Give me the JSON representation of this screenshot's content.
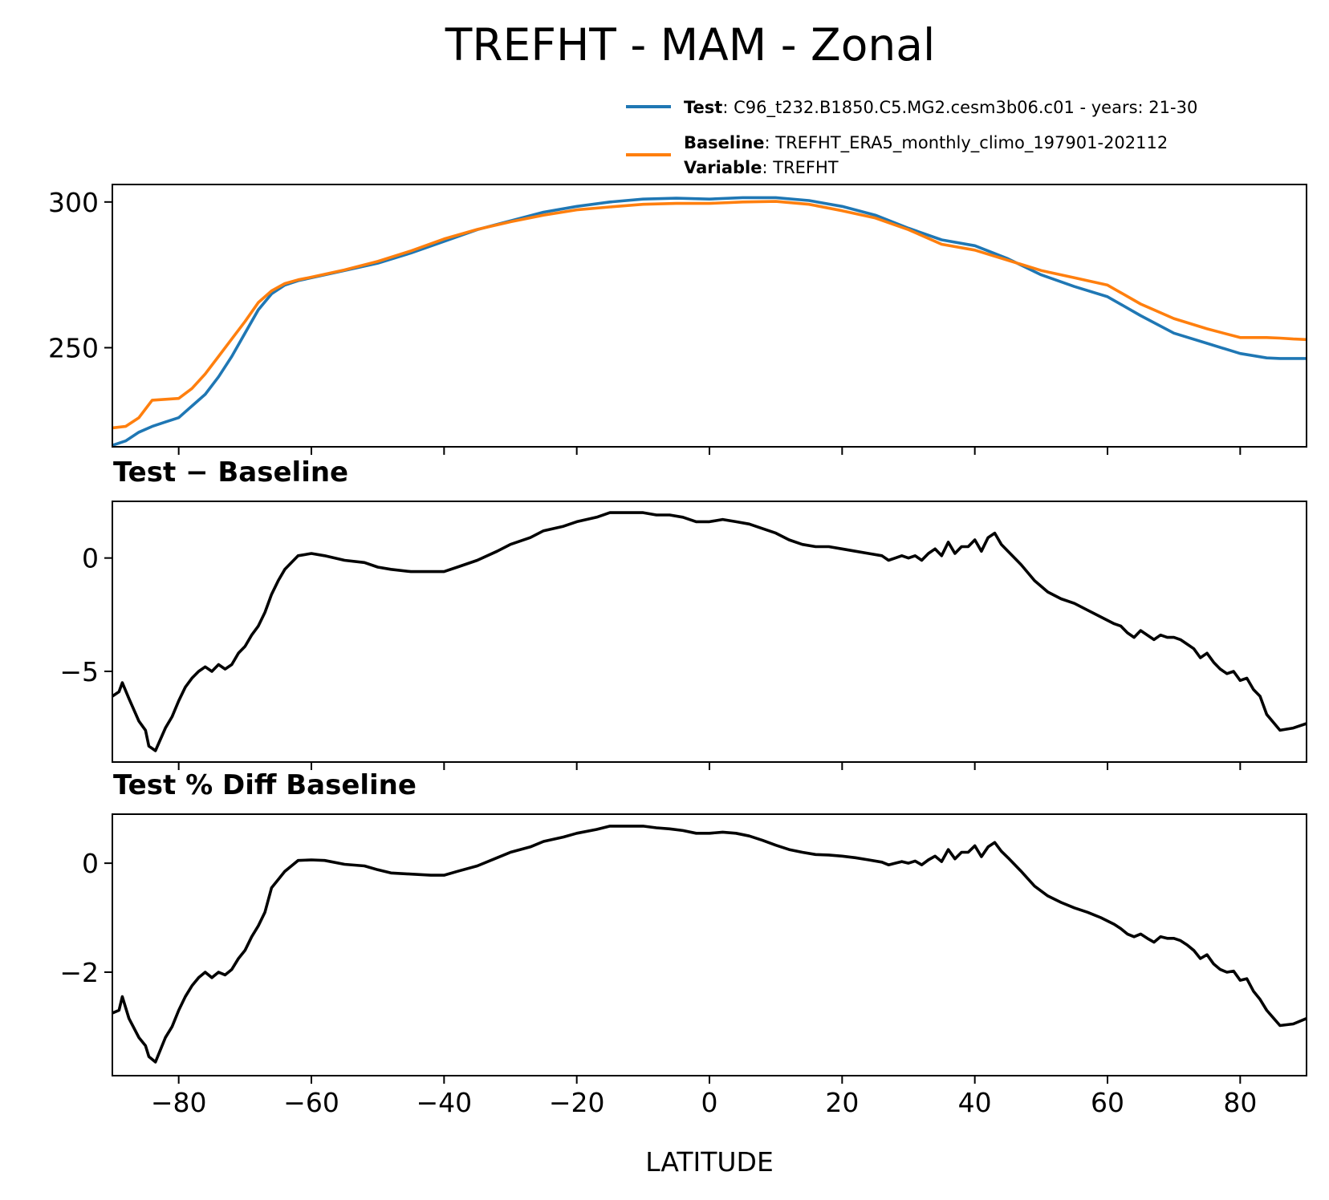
{
  "figure": {
    "title": "TREFHT - MAM - Zonal",
    "xlabel": "LATITUDE"
  },
  "legend": {
    "test_key": "Test",
    "test_text": ": C96_t232.B1850.C5.MG2.cesm3b06.c01 - years: 21-30",
    "baseline_key": "Baseline",
    "baseline_text": ": TREFHT_ERA5_monthly_climo_197901-202112",
    "variable_key": "Variable",
    "variable_text": ": TREFHT"
  },
  "colors": {
    "test": "#1f77b4",
    "baseline": "#ff7f0e",
    "diff": "#000000"
  },
  "chart_data": [
    {
      "type": "line",
      "title": "",
      "xlabel": "",
      "ylabel": "",
      "xlim": [
        -90,
        90
      ],
      "ylim": [
        216,
        306
      ],
      "xticks": [
        -80,
        -60,
        -40,
        -20,
        0,
        20,
        40,
        60,
        80
      ],
      "yticks": [
        250,
        300
      ],
      "ytick_labels": [
        "250",
        "300"
      ],
      "series": [
        {
          "name": "Test",
          "x": [
            -90,
            -88,
            -86,
            -84,
            -82,
            -80,
            -78,
            -76,
            -74,
            -72,
            -70,
            -68,
            -66,
            -64,
            -62,
            -60,
            -55,
            -50,
            -45,
            -40,
            -35,
            -30,
            -25,
            -20,
            -15,
            -10,
            -5,
            0,
            5,
            10,
            15,
            20,
            25,
            30,
            35,
            40,
            45,
            50,
            55,
            60,
            65,
            70,
            75,
            80,
            84,
            86,
            88,
            90
          ],
          "values": [
            216.5,
            218,
            221,
            223,
            224.5,
            226,
            230,
            234,
            240,
            247,
            255,
            263,
            268.5,
            271.5,
            273,
            274,
            276.5,
            279,
            282.5,
            286.5,
            290.5,
            293.5,
            296.5,
            298.5,
            300,
            301,
            301.3,
            301,
            301.5,
            301.5,
            300.5,
            298.5,
            295.5,
            291,
            287,
            285,
            280.5,
            275,
            271,
            267.5,
            261,
            255,
            251.5,
            248,
            246.5,
            246.3,
            246.3,
            246.3
          ]
        },
        {
          "name": "Baseline",
          "x": [
            -90,
            -88,
            -86,
            -84,
            -82,
            -80,
            -78,
            -76,
            -74,
            -72,
            -70,
            -68,
            -66,
            -64,
            -62,
            -60,
            -55,
            -50,
            -45,
            -40,
            -35,
            -30,
            -25,
            -20,
            -15,
            -10,
            -5,
            0,
            5,
            10,
            15,
            20,
            25,
            30,
            35,
            40,
            45,
            50,
            55,
            60,
            65,
            70,
            75,
            80,
            84,
            86,
            88,
            90
          ],
          "values": [
            222.5,
            223,
            226,
            232,
            232.3,
            232.6,
            236,
            241,
            247,
            253,
            259,
            265.5,
            269.5,
            272,
            273.3,
            274.2,
            276.7,
            279.6,
            283.2,
            287.3,
            290.6,
            293.2,
            295.5,
            297.3,
            298.3,
            299.2,
            299.5,
            299.5,
            300,
            300.2,
            299.2,
            297,
            294.5,
            290.5,
            285.5,
            283.5,
            280,
            276.5,
            274,
            271.5,
            265,
            260,
            256.5,
            253.5,
            253.5,
            253.3,
            253,
            252.8
          ]
        }
      ]
    },
    {
      "type": "line",
      "title": "Test − Baseline",
      "xlabel": "",
      "ylabel": "",
      "xlim": [
        -90,
        90
      ],
      "ylim": [
        -9.0,
        2.5
      ],
      "xticks": [
        -80,
        -60,
        -40,
        -20,
        0,
        20,
        40,
        60,
        80
      ],
      "yticks": [
        -5,
        0
      ],
      "ytick_labels": [
        "−5",
        "0"
      ],
      "series": [
        {
          "name": "",
          "x": [
            -90,
            -89,
            -88.5,
            -87.5,
            -86,
            -85,
            -84.5,
            -83.5,
            -82,
            -81,
            -80,
            -79,
            -78,
            -77,
            -76,
            -75,
            -74,
            -73,
            -72,
            -71,
            -70,
            -69,
            -68,
            -67,
            -66,
            -65,
            -64,
            -63,
            -62,
            -60,
            -58,
            -55,
            -52,
            -50,
            -48,
            -45,
            -42,
            -40,
            -38,
            -35,
            -32,
            -30,
            -27,
            -25,
            -22,
            -20,
            -17,
            -15,
            -13,
            -10,
            -8,
            -6,
            -4,
            -2,
            0,
            2,
            4,
            6,
            8,
            10,
            12,
            14,
            16,
            18,
            20,
            22,
            24,
            26,
            27,
            28,
            29,
            30,
            31,
            32,
            33,
            34,
            35,
            36,
            37,
            38,
            39,
            40,
            41,
            42,
            43,
            44,
            45,
            47,
            49,
            51,
            53,
            55,
            57,
            59,
            61,
            62,
            63,
            64,
            65,
            66,
            67,
            68,
            69,
            70,
            71,
            72,
            73,
            74,
            75,
            76,
            77,
            78,
            79,
            80,
            81,
            82,
            83,
            84,
            86,
            88,
            90
          ],
          "values": [
            -6.1,
            -5.9,
            -5.5,
            -6.2,
            -7.2,
            -7.6,
            -8.3,
            -8.5,
            -7.5,
            -7.0,
            -6.3,
            -5.7,
            -5.3,
            -5.0,
            -4.8,
            -5.0,
            -4.7,
            -4.9,
            -4.7,
            -4.2,
            -3.9,
            -3.4,
            -3.0,
            -2.4,
            -1.6,
            -1.0,
            -0.5,
            -0.2,
            0.1,
            0.2,
            0.1,
            -0.1,
            -0.2,
            -0.4,
            -0.5,
            -0.6,
            -0.6,
            -0.6,
            -0.4,
            -0.1,
            0.3,
            0.6,
            0.9,
            1.2,
            1.4,
            1.6,
            1.8,
            2.0,
            2.0,
            2.0,
            1.9,
            1.9,
            1.8,
            1.6,
            1.6,
            1.7,
            1.6,
            1.5,
            1.3,
            1.1,
            0.8,
            0.6,
            0.5,
            0.5,
            0.4,
            0.3,
            0.2,
            0.1,
            -0.1,
            0.0,
            0.1,
            0.0,
            0.1,
            -0.1,
            0.2,
            0.4,
            0.1,
            0.7,
            0.2,
            0.5,
            0.5,
            0.8,
            0.3,
            0.9,
            1.1,
            0.6,
            0.3,
            -0.3,
            -1.0,
            -1.5,
            -1.8,
            -2.0,
            -2.3,
            -2.6,
            -2.9,
            -3.0,
            -3.3,
            -3.5,
            -3.2,
            -3.4,
            -3.6,
            -3.4,
            -3.5,
            -3.5,
            -3.6,
            -3.8,
            -4.0,
            -4.4,
            -4.2,
            -4.6,
            -4.9,
            -5.1,
            -5.0,
            -5.4,
            -5.3,
            -5.8,
            -6.1,
            -6.9,
            -7.6,
            -7.5,
            -7.3
          ]
        }
      ]
    },
    {
      "type": "line",
      "title": "Test % Diff Baseline",
      "xlabel": "LATITUDE",
      "ylabel": "",
      "xlim": [
        -90,
        90
      ],
      "ylim": [
        -3.9,
        0.9
      ],
      "xticks": [
        -80,
        -60,
        -40,
        -20,
        0,
        20,
        40,
        60,
        80
      ],
      "xtick_labels": [
        "−80",
        "−60",
        "−40",
        "−20",
        "0",
        "20",
        "40",
        "60",
        "80"
      ],
      "yticks": [
        -2,
        0
      ],
      "ytick_labels": [
        "−2",
        "0"
      ],
      "series": [
        {
          "name": "",
          "x": [
            -90,
            -89,
            -88.5,
            -87.5,
            -86,
            -85,
            -84.5,
            -83.5,
            -82,
            -81,
            -80,
            -79,
            -78,
            -77,
            -76,
            -75,
            -74,
            -73,
            -72,
            -71,
            -70,
            -69,
            -68,
            -67,
            -66,
            -65,
            -64,
            -63,
            -62,
            -60,
            -58,
            -55,
            -52,
            -50,
            -48,
            -45,
            -42,
            -40,
            -38,
            -35,
            -32,
            -30,
            -27,
            -25,
            -22,
            -20,
            -17,
            -15,
            -13,
            -10,
            -8,
            -6,
            -4,
            -2,
            0,
            2,
            4,
            6,
            8,
            10,
            12,
            14,
            16,
            18,
            20,
            22,
            24,
            26,
            27,
            28,
            29,
            30,
            31,
            32,
            33,
            34,
            35,
            36,
            37,
            38,
            39,
            40,
            41,
            42,
            43,
            44,
            45,
            47,
            49,
            51,
            53,
            55,
            57,
            59,
            61,
            62,
            63,
            64,
            65,
            66,
            67,
            68,
            69,
            70,
            71,
            72,
            73,
            74,
            75,
            76,
            77,
            78,
            79,
            80,
            81,
            82,
            83,
            84,
            86,
            88,
            90
          ],
          "values": [
            -2.75,
            -2.7,
            -2.45,
            -2.85,
            -3.2,
            -3.35,
            -3.55,
            -3.65,
            -3.2,
            -3.0,
            -2.7,
            -2.45,
            -2.25,
            -2.1,
            -2.0,
            -2.1,
            -2.0,
            -2.05,
            -1.95,
            -1.75,
            -1.6,
            -1.35,
            -1.15,
            -0.9,
            -0.45,
            -0.3,
            -0.15,
            -0.05,
            0.05,
            0.06,
            0.05,
            -0.02,
            -0.05,
            -0.12,
            -0.18,
            -0.2,
            -0.22,
            -0.22,
            -0.15,
            -0.05,
            0.1,
            0.2,
            0.3,
            0.4,
            0.48,
            0.55,
            0.62,
            0.68,
            0.68,
            0.68,
            0.65,
            0.63,
            0.6,
            0.55,
            0.55,
            0.57,
            0.55,
            0.5,
            0.42,
            0.33,
            0.25,
            0.2,
            0.16,
            0.15,
            0.13,
            0.1,
            0.06,
            0.02,
            -0.03,
            0.0,
            0.03,
            0.0,
            0.04,
            -0.03,
            0.06,
            0.13,
            0.03,
            0.25,
            0.08,
            0.2,
            0.2,
            0.32,
            0.12,
            0.3,
            0.38,
            0.22,
            0.1,
            -0.15,
            -0.42,
            -0.6,
            -0.72,
            -0.82,
            -0.9,
            -1.0,
            -1.12,
            -1.2,
            -1.3,
            -1.35,
            -1.3,
            -1.38,
            -1.45,
            -1.35,
            -1.38,
            -1.38,
            -1.42,
            -1.5,
            -1.6,
            -1.75,
            -1.68,
            -1.85,
            -1.95,
            -2.0,
            -1.98,
            -2.15,
            -2.12,
            -2.35,
            -2.5,
            -2.7,
            -2.98,
            -2.95,
            -2.85
          ]
        }
      ]
    }
  ]
}
